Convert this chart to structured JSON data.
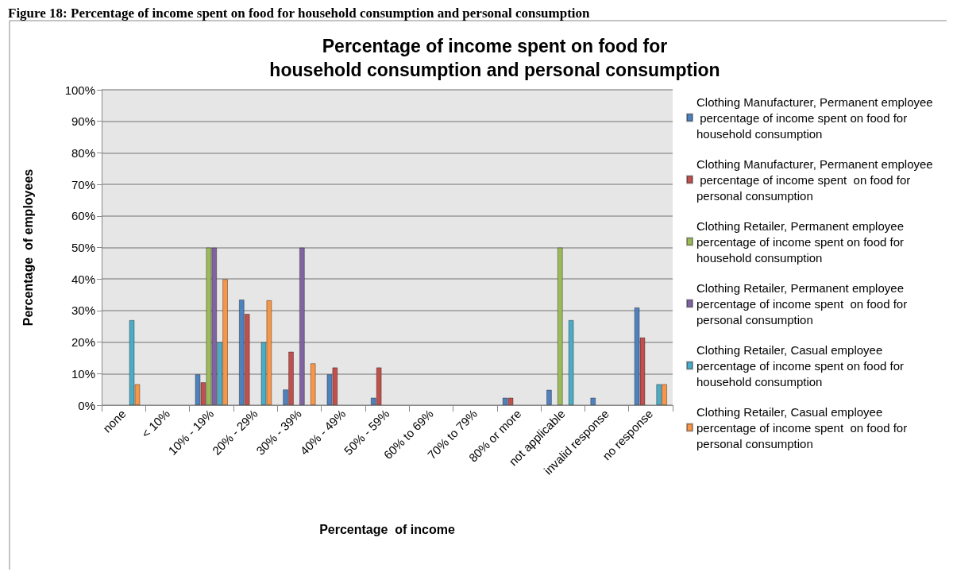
{
  "chart_data": {
    "type": "bar",
    "title": "Percentage of income spent on food for\nhousehold consumption and personal consumption",
    "annotations": [
      "Figure 18: Percentage of income spent on food for household consumption and personal consumption"
    ],
    "xlabel": "Percentage  of income",
    "ylabel": "Percentage  of employees",
    "categories": [
      "none",
      "< 10%",
      "10% - 19%",
      "20% - 29%",
      "30% - 39%",
      "40% - 49%",
      "50% - 59%",
      "60% to 69%",
      "70% to 79%",
      "80% or more",
      "not applicable",
      "invalid response",
      "no response"
    ],
    "series": [
      {
        "name": "Clothing Manufacturer, Permanent employee percentage of income spent on food for household consumption",
        "color": "#4f81bd",
        "values": [
          null,
          null,
          9.8,
          33.5,
          5,
          9.8,
          2.4,
          null,
          null,
          2.4,
          4.9,
          2.4,
          31
        ]
      },
      {
        "name": "Clothing Manufacturer, Permanent employee percentage of income spent  on food for personal consumption",
        "color": "#c0504d",
        "values": [
          null,
          null,
          7.3,
          29,
          17,
          12,
          12,
          null,
          null,
          2.4,
          null,
          null,
          21.5
        ]
      },
      {
        "name": "Clothing Retailer, Permanent employee percentage of income spent on food for household consumption",
        "color": "#9bbb59",
        "values": [
          null,
          null,
          50,
          null,
          null,
          null,
          null,
          null,
          null,
          null,
          50,
          null,
          null
        ]
      },
      {
        "name": "Clothing Retailer, Permanent employee percentage of income spent  on food for personal consumption",
        "color": "#8064a2",
        "values": [
          null,
          null,
          50,
          null,
          50,
          null,
          null,
          null,
          null,
          null,
          null,
          null,
          null
        ]
      },
      {
        "name": "Clothing Retailer, Casual employee percentage of income spent on food for household consumption",
        "color": "#4bacc6",
        "values": [
          27,
          null,
          20,
          20,
          null,
          null,
          null,
          null,
          null,
          null,
          27,
          null,
          6.7
        ]
      },
      {
        "name": "Clothing Retailer, Casual employee percentage of income spent  on food for personal consumption",
        "color": "#f79646",
        "values": [
          6.7,
          null,
          40,
          33.3,
          13.3,
          null,
          null,
          null,
          null,
          null,
          null,
          null,
          6.7
        ]
      }
    ],
    "ylim": [
      0,
      100
    ],
    "yticks": [
      {
        "value": 0,
        "label": "0%"
      },
      {
        "value": 10,
        "label": "10%"
      },
      {
        "value": 20,
        "label": "20%"
      },
      {
        "value": 30,
        "label": "30%"
      },
      {
        "value": 40,
        "label": "40%"
      },
      {
        "value": 50,
        "label": "50%"
      },
      {
        "value": 60,
        "label": "60%"
      },
      {
        "value": 70,
        "label": "70%"
      },
      {
        "value": 80,
        "label": "80%"
      },
      {
        "value": 90,
        "label": "90%"
      },
      {
        "value": 100,
        "label": "100%"
      }
    ],
    "grid": "y",
    "legend": "right"
  }
}
